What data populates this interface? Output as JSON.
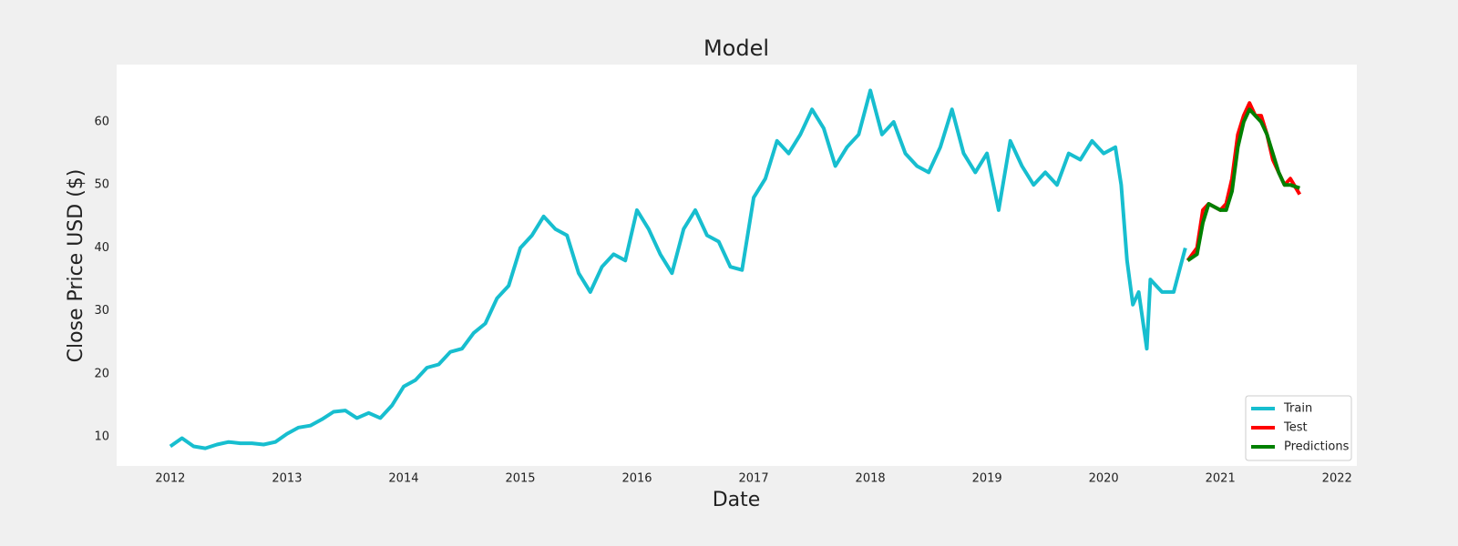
{
  "chart_data": {
    "type": "line",
    "title": "Model",
    "x_label": "Date",
    "y_label": "Close Price USD ($)",
    "xlim": [
      2011.54,
      2022.17
    ],
    "xticks": [
      2012,
      2013,
      2014,
      2015,
      2016,
      2017,
      2018,
      2019,
      2020,
      2021,
      2022
    ],
    "ylim": [
      5.4,
      69.1
    ],
    "yticks": [
      10,
      20,
      30,
      40,
      50,
      60
    ],
    "grid": false,
    "legend": "lower right",
    "series": [
      {
        "name": "Train",
        "color": "#17becf",
        "x": [
          2012.0,
          2012.1,
          2012.2,
          2012.3,
          2012.4,
          2012.5,
          2012.6,
          2012.7,
          2012.8,
          2012.9,
          2013.0,
          2013.1,
          2013.2,
          2013.3,
          2013.4,
          2013.5,
          2013.6,
          2013.7,
          2013.8,
          2013.9,
          2014.0,
          2014.1,
          2014.2,
          2014.3,
          2014.4,
          2014.5,
          2014.6,
          2014.7,
          2014.8,
          2014.9,
          2015.0,
          2015.1,
          2015.2,
          2015.3,
          2015.4,
          2015.5,
          2015.6,
          2015.7,
          2015.8,
          2015.9,
          2016.0,
          2016.1,
          2016.2,
          2016.3,
          2016.4,
          2016.5,
          2016.6,
          2016.7,
          2016.8,
          2016.9,
          2017.0,
          2017.1,
          2017.2,
          2017.3,
          2017.4,
          2017.5,
          2017.6,
          2017.7,
          2017.8,
          2017.9,
          2018.0,
          2018.1,
          2018.2,
          2018.3,
          2018.4,
          2018.5,
          2018.6,
          2018.7,
          2018.8,
          2018.9,
          2019.0,
          2019.1,
          2019.2,
          2019.3,
          2019.4,
          2019.5,
          2019.6,
          2019.7,
          2019.8,
          2019.9,
          2020.0,
          2020.1,
          2020.15,
          2020.2,
          2020.25,
          2020.3,
          2020.37,
          2020.4,
          2020.5,
          2020.6,
          2020.7
        ],
        "values": [
          8.5,
          9.8,
          8.5,
          8.2,
          8.8,
          9.2,
          9.0,
          9.0,
          8.8,
          9.2,
          10.5,
          11.5,
          11.8,
          12.8,
          14.0,
          14.2,
          13.0,
          13.8,
          13.0,
          15.0,
          18.0,
          19.0,
          21.0,
          21.5,
          23.5,
          24.0,
          26.5,
          28.0,
          32.0,
          34.0,
          40.0,
          42.0,
          45.0,
          43.0,
          42.0,
          36.0,
          33.0,
          37.0,
          39.0,
          38.0,
          46.0,
          43.0,
          39.0,
          36.0,
          43.0,
          46.0,
          42.0,
          41.0,
          37.0,
          36.5,
          48.0,
          51.0,
          57.0,
          55.0,
          58.0,
          62.0,
          59.0,
          53.0,
          56.0,
          58.0,
          65.0,
          58.0,
          60.0,
          55.0,
          53.0,
          52.0,
          56.0,
          62.0,
          55.0,
          52.0,
          55.0,
          46.0,
          57.0,
          53.0,
          50.0,
          52.0,
          50.0,
          55.0,
          54.0,
          57.0,
          55.0,
          56.0,
          50.0,
          38.0,
          31.0,
          33.0,
          24.0,
          35.0,
          33.0,
          33.0,
          40.0
        ]
      },
      {
        "name": "Test",
        "color": "#ff0000",
        "x": [
          2020.72,
          2020.8,
          2020.85,
          2020.9,
          2021.0,
          2021.05,
          2021.1,
          2021.15,
          2021.2,
          2021.25,
          2021.3,
          2021.35,
          2021.4,
          2021.45,
          2021.5,
          2021.55,
          2021.6,
          2021.68
        ],
        "values": [
          38,
          40,
          46,
          47,
          46,
          47,
          51,
          58,
          61,
          63,
          61,
          61,
          58,
          54,
          52,
          50,
          51,
          48.5
        ]
      },
      {
        "name": "Predictions",
        "color": "#008000",
        "x": [
          2020.72,
          2020.8,
          2020.85,
          2020.9,
          2021.0,
          2021.05,
          2021.1,
          2021.15,
          2021.2,
          2021.25,
          2021.3,
          2021.35,
          2021.4,
          2021.45,
          2021.5,
          2021.55,
          2021.6,
          2021.68
        ],
        "values": [
          38,
          39,
          44,
          47,
          46,
          46,
          49,
          56,
          60,
          62,
          61,
          60,
          58,
          55,
          52,
          50,
          50,
          49.5
        ]
      }
    ]
  }
}
